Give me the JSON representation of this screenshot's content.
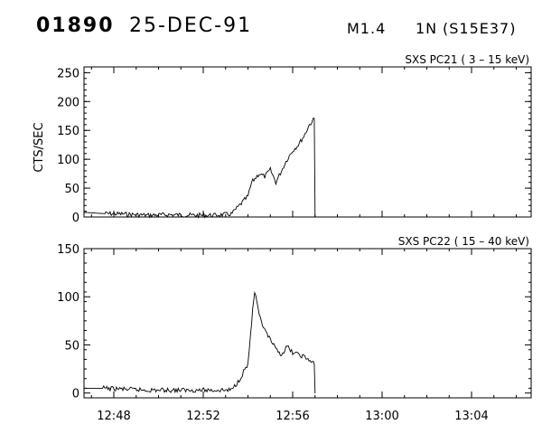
{
  "header": {
    "event_id": "01890",
    "date": "25-DEC-91",
    "goes_class": "M1.4",
    "optical_class": "1N",
    "location": "(S15E37)"
  },
  "chart_data": [
    {
      "type": "line",
      "title": "SXS PC21  (  3 – 15 keV)",
      "ylabel": "CTS/SEC",
      "xlabel": "",
      "xlim": [
        "12:46:40",
        "13:06:40"
      ],
      "ylim": [
        0,
        260
      ],
      "yticks": [
        0,
        50,
        100,
        150,
        200,
        250
      ],
      "ytick_labels": [
        "0",
        "50",
        "100",
        "150",
        "200",
        "250"
      ],
      "grid": false,
      "series": [
        {
          "x": [
            "12:46:40",
            "12:47:30",
            "12:48:30",
            "12:49:30",
            "12:50:30",
            "12:51:30",
            "12:52:30",
            "12:53:15",
            "12:53:30",
            "12:54:00",
            "12:54:10",
            "12:54:30",
            "12:54:45",
            "12:55:00",
            "12:55:15",
            "12:55:30",
            "12:55:45",
            "12:56:00",
            "12:56:15",
            "12:56:30",
            "12:56:45",
            "12:56:58",
            "12:57:00",
            "12:57:01"
          ],
          "y": [
            8,
            6,
            5,
            3,
            4,
            3,
            3,
            5,
            15,
            36,
            60,
            75,
            70,
            82,
            60,
            80,
            100,
            115,
            125,
            140,
            160,
            170,
            0,
            0
          ]
        }
      ]
    },
    {
      "type": "line",
      "title": "SXS PC22  ( 15 – 40 keV)",
      "ylabel": "",
      "xlabel": "",
      "xlim": [
        "12:46:40",
        "13:06:40"
      ],
      "ylim": [
        -5,
        150
      ],
      "yticks": [
        0,
        50,
        100,
        150
      ],
      "ytick_labels": [
        "0",
        "50",
        "100",
        "150"
      ],
      "xticks": [
        "12:48:00",
        "12:52:00",
        "12:56:00",
        "13:00:00",
        "13:04:00"
      ],
      "xtick_labels": [
        "12:48",
        "12:52",
        "12:56",
        "13:00",
        "13:04"
      ],
      "grid": false,
      "series": [
        {
          "x": [
            "12:46:40",
            "12:47:30",
            "12:48:30",
            "12:49:30",
            "12:50:30",
            "12:51:30",
            "12:52:30",
            "12:53:15",
            "12:53:30",
            "12:54:00",
            "12:54:10",
            "12:54:18",
            "12:54:30",
            "12:54:45",
            "12:55:00",
            "12:55:15",
            "12:55:30",
            "12:55:45",
            "12:56:00",
            "12:56:15",
            "12:56:30",
            "12:56:58",
            "12:57:00",
            "12:57:01"
          ],
          "y": [
            5,
            5,
            4,
            3,
            3,
            3,
            3,
            3,
            10,
            30,
            75,
            105,
            80,
            65,
            55,
            45,
            40,
            48,
            42,
            40,
            38,
            30,
            0,
            0
          ]
        }
      ]
    }
  ]
}
